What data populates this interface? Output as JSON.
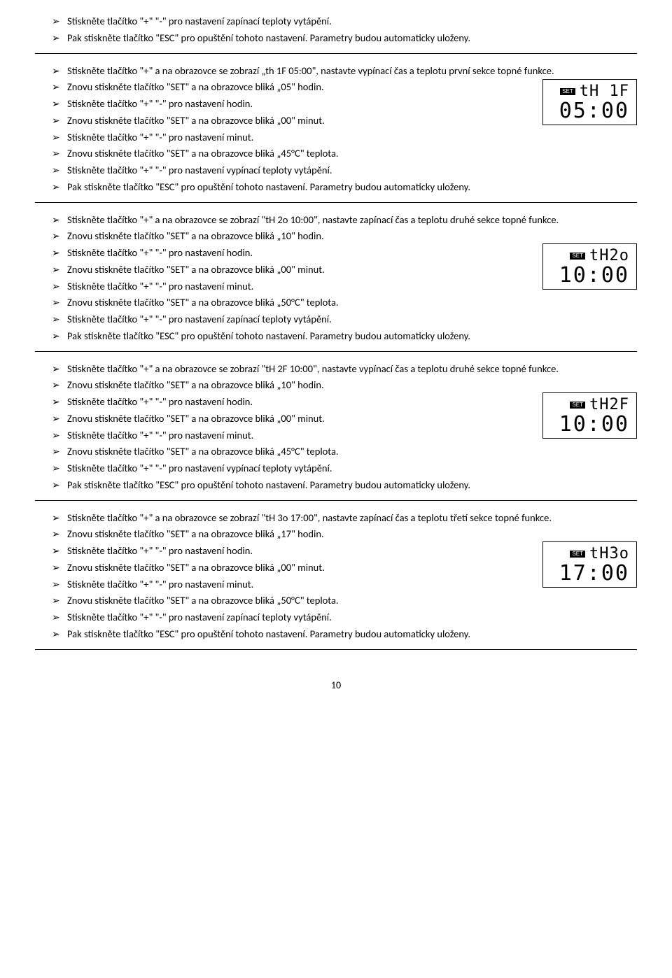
{
  "section0": {
    "items": [
      "Stiskněte tlačítko  \"+\" \"-\"  pro nastavení zapínací teploty vytápění.",
      "Pak stiskněte tlačítko  \"ESC\" pro opuštění tohoto nastavení. Parametry budou automaticky uloženy."
    ]
  },
  "section1": {
    "display_top": "tH 1F",
    "display_bottom": "05:00",
    "items": [
      "Stiskněte tlačítko  \"+\" a na obrazovce se zobrazí „th 1F 05:00\", nastavte vypínací čas a teplotu první sekce topné funkce.",
      "Znovu stiskněte tlačítko  \"SET\"  a na obrazovce bliká „05\" hodin.",
      "Stiskněte tlačítko  \"+\" \"-\" pro nastavení hodin.",
      "Znovu stiskněte tlačítko \"SET\" a na obrazovce bliká „00\" minut.",
      "Stiskněte tlačítko  \"+\" \"-\" pro nastavení minut.",
      "Znovu stiskněte tlačítko \"SET\" a na obrazovce bliká „45°C\" teplota.",
      "Stiskněte tlačítko  \"+\" \"-\"  pro nastavení vypínací teploty vytápění.",
      "Pak stiskněte tlačítko  \"ESC\" pro opuštění tohoto nastavení. Parametry budou automaticky uloženy."
    ]
  },
  "section2": {
    "display_top": "tH2o",
    "display_bottom": "10:00",
    "items": [
      "Stiskněte tlačítko  \"+\" a na obrazovce se zobrazí \"tH 2o 10:00\", nastavte zapínací čas a teplotu druhé sekce topné funkce.",
      "Znovu stiskněte tlačítko  \"SET\"  a na obrazovce bliká „10\" hodin.",
      "Stiskněte tlačítko  \"+\" \"-\" pro nastavení hodin.",
      "Znovu stiskněte tlačítko \"SET\" a na obrazovce bliká „00\" minut.",
      "Stiskněte tlačítko  \"+\" \"-\" pro nastavení minut.",
      "Znovu stiskněte tlačítko \"SET\" a na obrazovce bliká „50°C\" teplota.",
      "Stiskněte tlačítko  \"+\" \"-\"  pro nastavení zapínací teploty vytápění.",
      "Pak stiskněte tlačítko  \"ESC\" pro opuštění tohoto nastavení. Parametry budou automaticky uloženy."
    ]
  },
  "section3": {
    "display_top": "tH2F",
    "display_bottom": "10:00",
    "items": [
      "Stiskněte tlačítko  \"+\" a na obrazovce se zobrazí \"tH 2F 10:00\", nastavte vypínací čas a teplotu druhé sekce topné funkce.",
      "Znovu stiskněte tlačítko  \"SET\"  a na obrazovce bliká „10\" hodin.",
      "Stiskněte tlačítko  \"+\" \"-\" pro nastavení hodin.",
      "Znovu stiskněte tlačítko \"SET\" a na obrazovce bliká „00\" minut.",
      "Stiskněte tlačítko  \"+\" \"-\" pro nastavení minut.",
      "Znovu stiskněte tlačítko \"SET\" a na obrazovce bliká „45°C\" teplota.",
      "Stiskněte tlačítko  \"+\" \"-\"  pro nastavení vypínací teploty vytápění.",
      "Pak stiskněte tlačítko  \"ESC\" pro opuštění tohoto nastavení. Parametry budou automaticky uloženy."
    ]
  },
  "section4": {
    "display_top": "tH3o",
    "display_bottom": "17:00",
    "items": [
      "Stiskněte tlačítko  \"+\" a na obrazovce se zobrazí \"tH 3o 17:00\", nastavte zapínací čas a teplotu třetí sekce topné funkce.",
      "Znovu stiskněte tlačítko  \"SET\"  a na obrazovce bliká „17\" hodin.",
      "Stiskněte tlačítko  \"+\" \"-\" pro nastavení hodin.",
      "Znovu stiskněte tlačítko \"SET\" a na obrazovce bliká „00\" minut.",
      "Stiskněte tlačítko  \"+\" \"-\" pro nastavení minut.",
      "Znovu stiskněte tlačítko \"SET\" a na obrazovce bliká „50°C\" teplota.",
      "Stiskněte tlačítko  \"+\" \"-\"  pro nastavení zapínací teploty vytápění.",
      "Pak stiskněte tlačítko  \"ESC\" pro opuštění tohoto nastavení. Parametry budou automaticky uloženy."
    ]
  },
  "set_label": "SET",
  "page_number": "10"
}
